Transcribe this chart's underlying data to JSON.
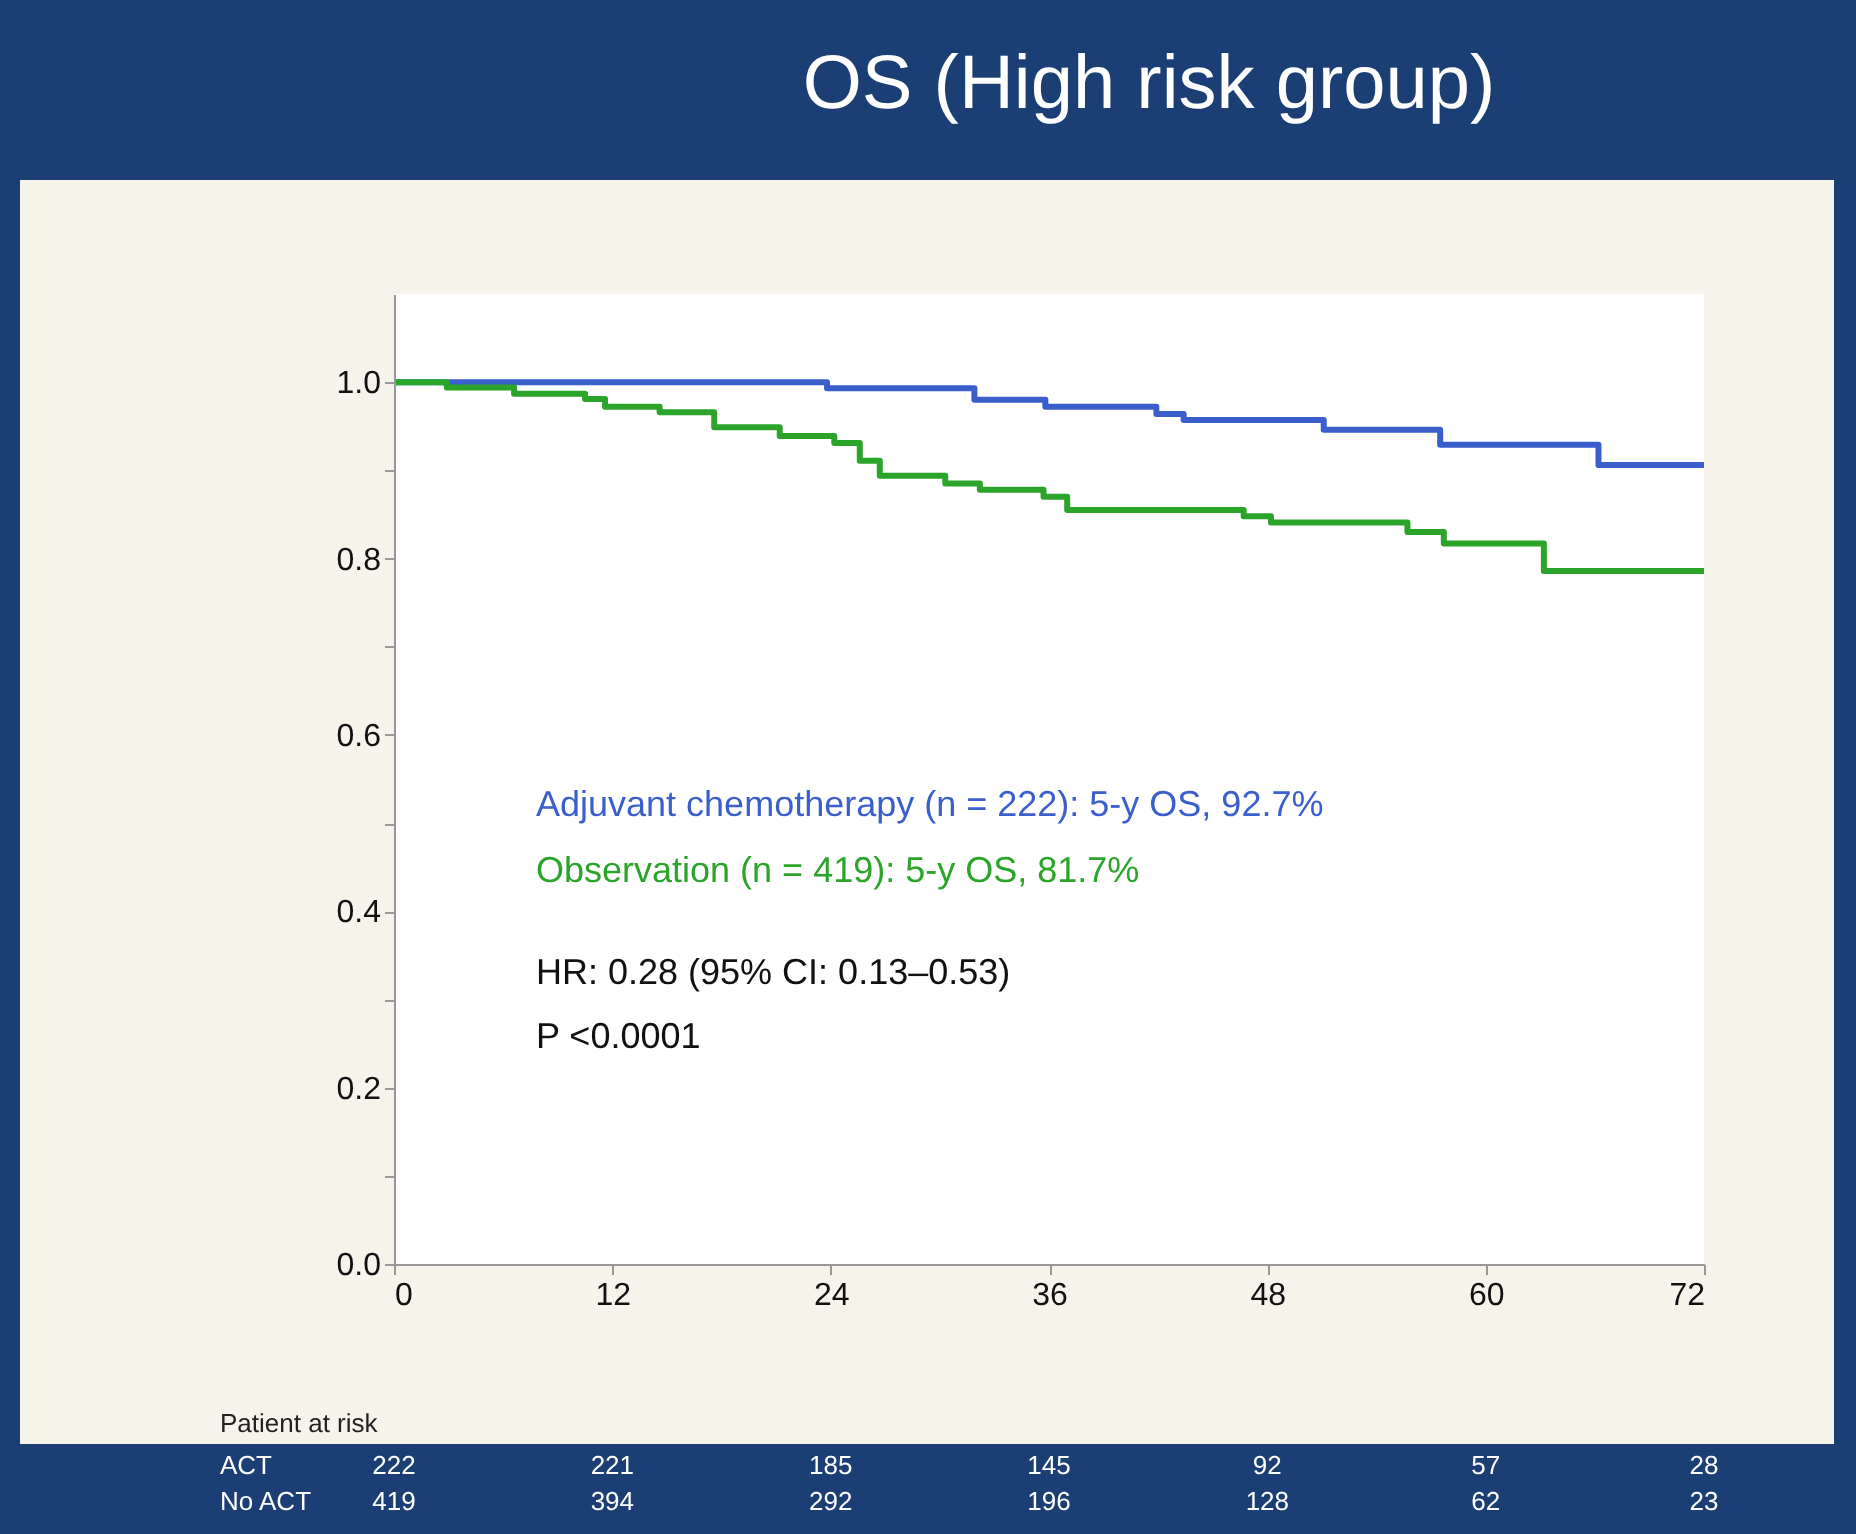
{
  "chart_data": {
    "type": "step",
    "title": "OS (High risk group)",
    "series": [
      {
        "name": "Adjuvant chemotherapy (n = 222): 5-y OS, 92.7%",
        "color": "#3a5fcd",
        "x": [
          0,
          23.8,
          31.9,
          35.8,
          41.9,
          43.4,
          51.1,
          57.5,
          66.2,
          72
        ],
        "values": [
          1.0,
          0.993,
          0.98,
          0.972,
          0.964,
          0.957,
          0.946,
          0.929,
          0.906,
          0.906
        ]
      },
      {
        "name": "Observation (n = 419): 5-y OS, 81.7%",
        "color": "#2aa52a",
        "x": [
          0,
          2.9,
          6.6,
          10.5,
          11.6,
          14.6,
          17.6,
          21.2,
          24.2,
          25.6,
          26.7,
          30.3,
          32.2,
          35.7,
          37,
          46.7,
          48.2,
          55.7,
          57.7,
          63.2,
          72
        ],
        "values": [
          1.0,
          0.994,
          0.987,
          0.981,
          0.972,
          0.966,
          0.949,
          0.939,
          0.931,
          0.911,
          0.894,
          0.885,
          0.878,
          0.87,
          0.855,
          0.848,
          0.841,
          0.83,
          0.817,
          0.786,
          0.786
        ]
      }
    ],
    "xlim": [
      0,
      72
    ],
    "xticks": [
      0,
      12,
      24,
      36,
      48,
      60,
      72
    ],
    "ylim": [
      0,
      1.1
    ],
    "yticks": [
      {
        "value": 0,
        "label": "0.0"
      },
      {
        "value": 0.1,
        "label": null
      },
      {
        "value": 0.2,
        "label": "0.2"
      },
      {
        "value": 0.3,
        "label": null
      },
      {
        "value": 0.4,
        "label": "0.4"
      },
      {
        "value": 0.5,
        "label": null
      },
      {
        "value": 0.6,
        "label": "0.6"
      },
      {
        "value": 0.7,
        "label": null
      },
      {
        "value": 0.8,
        "label": "0.8"
      },
      {
        "value": 0.9,
        "label": null
      },
      {
        "value": 1.0,
        "label": "1.0"
      }
    ],
    "legend": "left",
    "annotations": [
      "HR: 0.28 (95% CI: 0.13–0.53)",
      "P <0.0001",
      "Patient at risk",
      "ACT",
      "222",
      "221",
      "185",
      "145",
      "92",
      "57",
      "28",
      "No ACT",
      "419",
      "394",
      "292",
      "196",
      "128",
      "62",
      "23"
    ]
  }
}
